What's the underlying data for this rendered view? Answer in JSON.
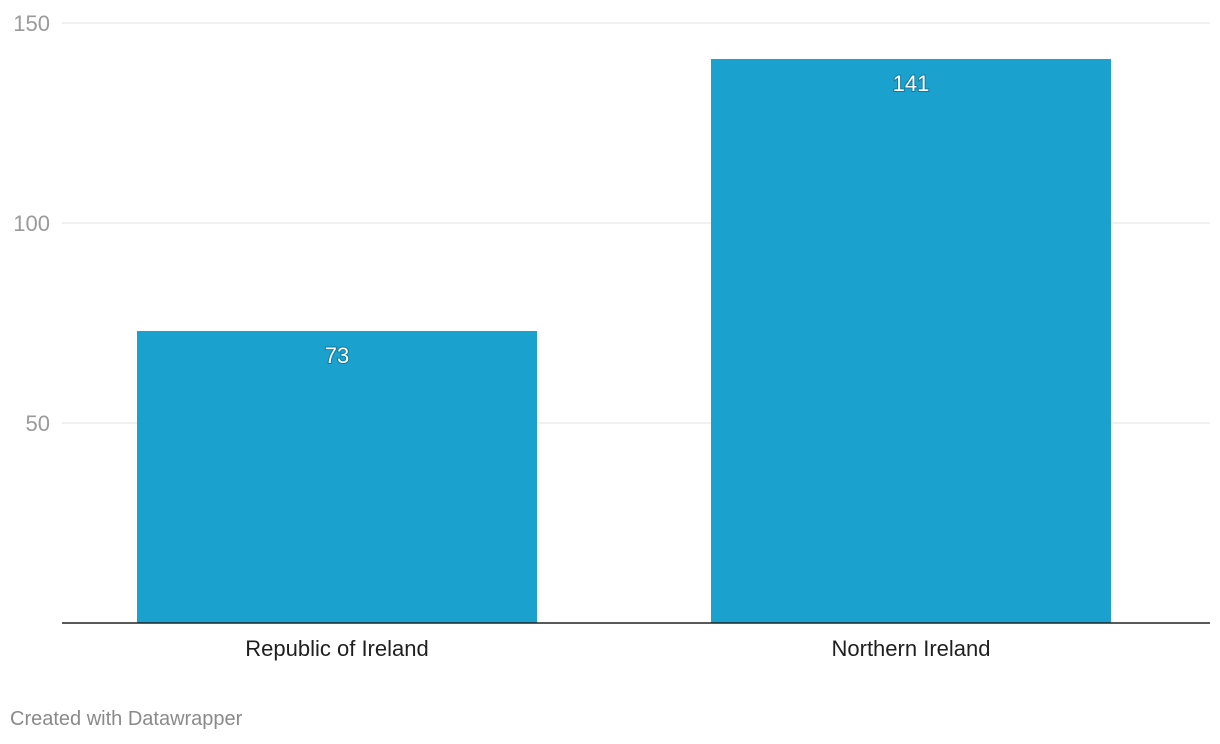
{
  "chart_data": {
    "type": "bar",
    "categories": [
      "Republic of Ireland",
      "Northern Ireland"
    ],
    "values": [
      73,
      141
    ],
    "ylim": [
      0,
      150
    ],
    "yticks": [
      50,
      100,
      150
    ],
    "grid": true,
    "value_labels": [
      "73",
      "141"
    ],
    "tick_labels": [
      "50",
      "100",
      "150"
    ],
    "colors": {
      "bar": "#1aa1ce",
      "grid": "#e2e2e2",
      "axis": "#222222"
    }
  },
  "footer": {
    "credit": "Created with Datawrapper"
  }
}
